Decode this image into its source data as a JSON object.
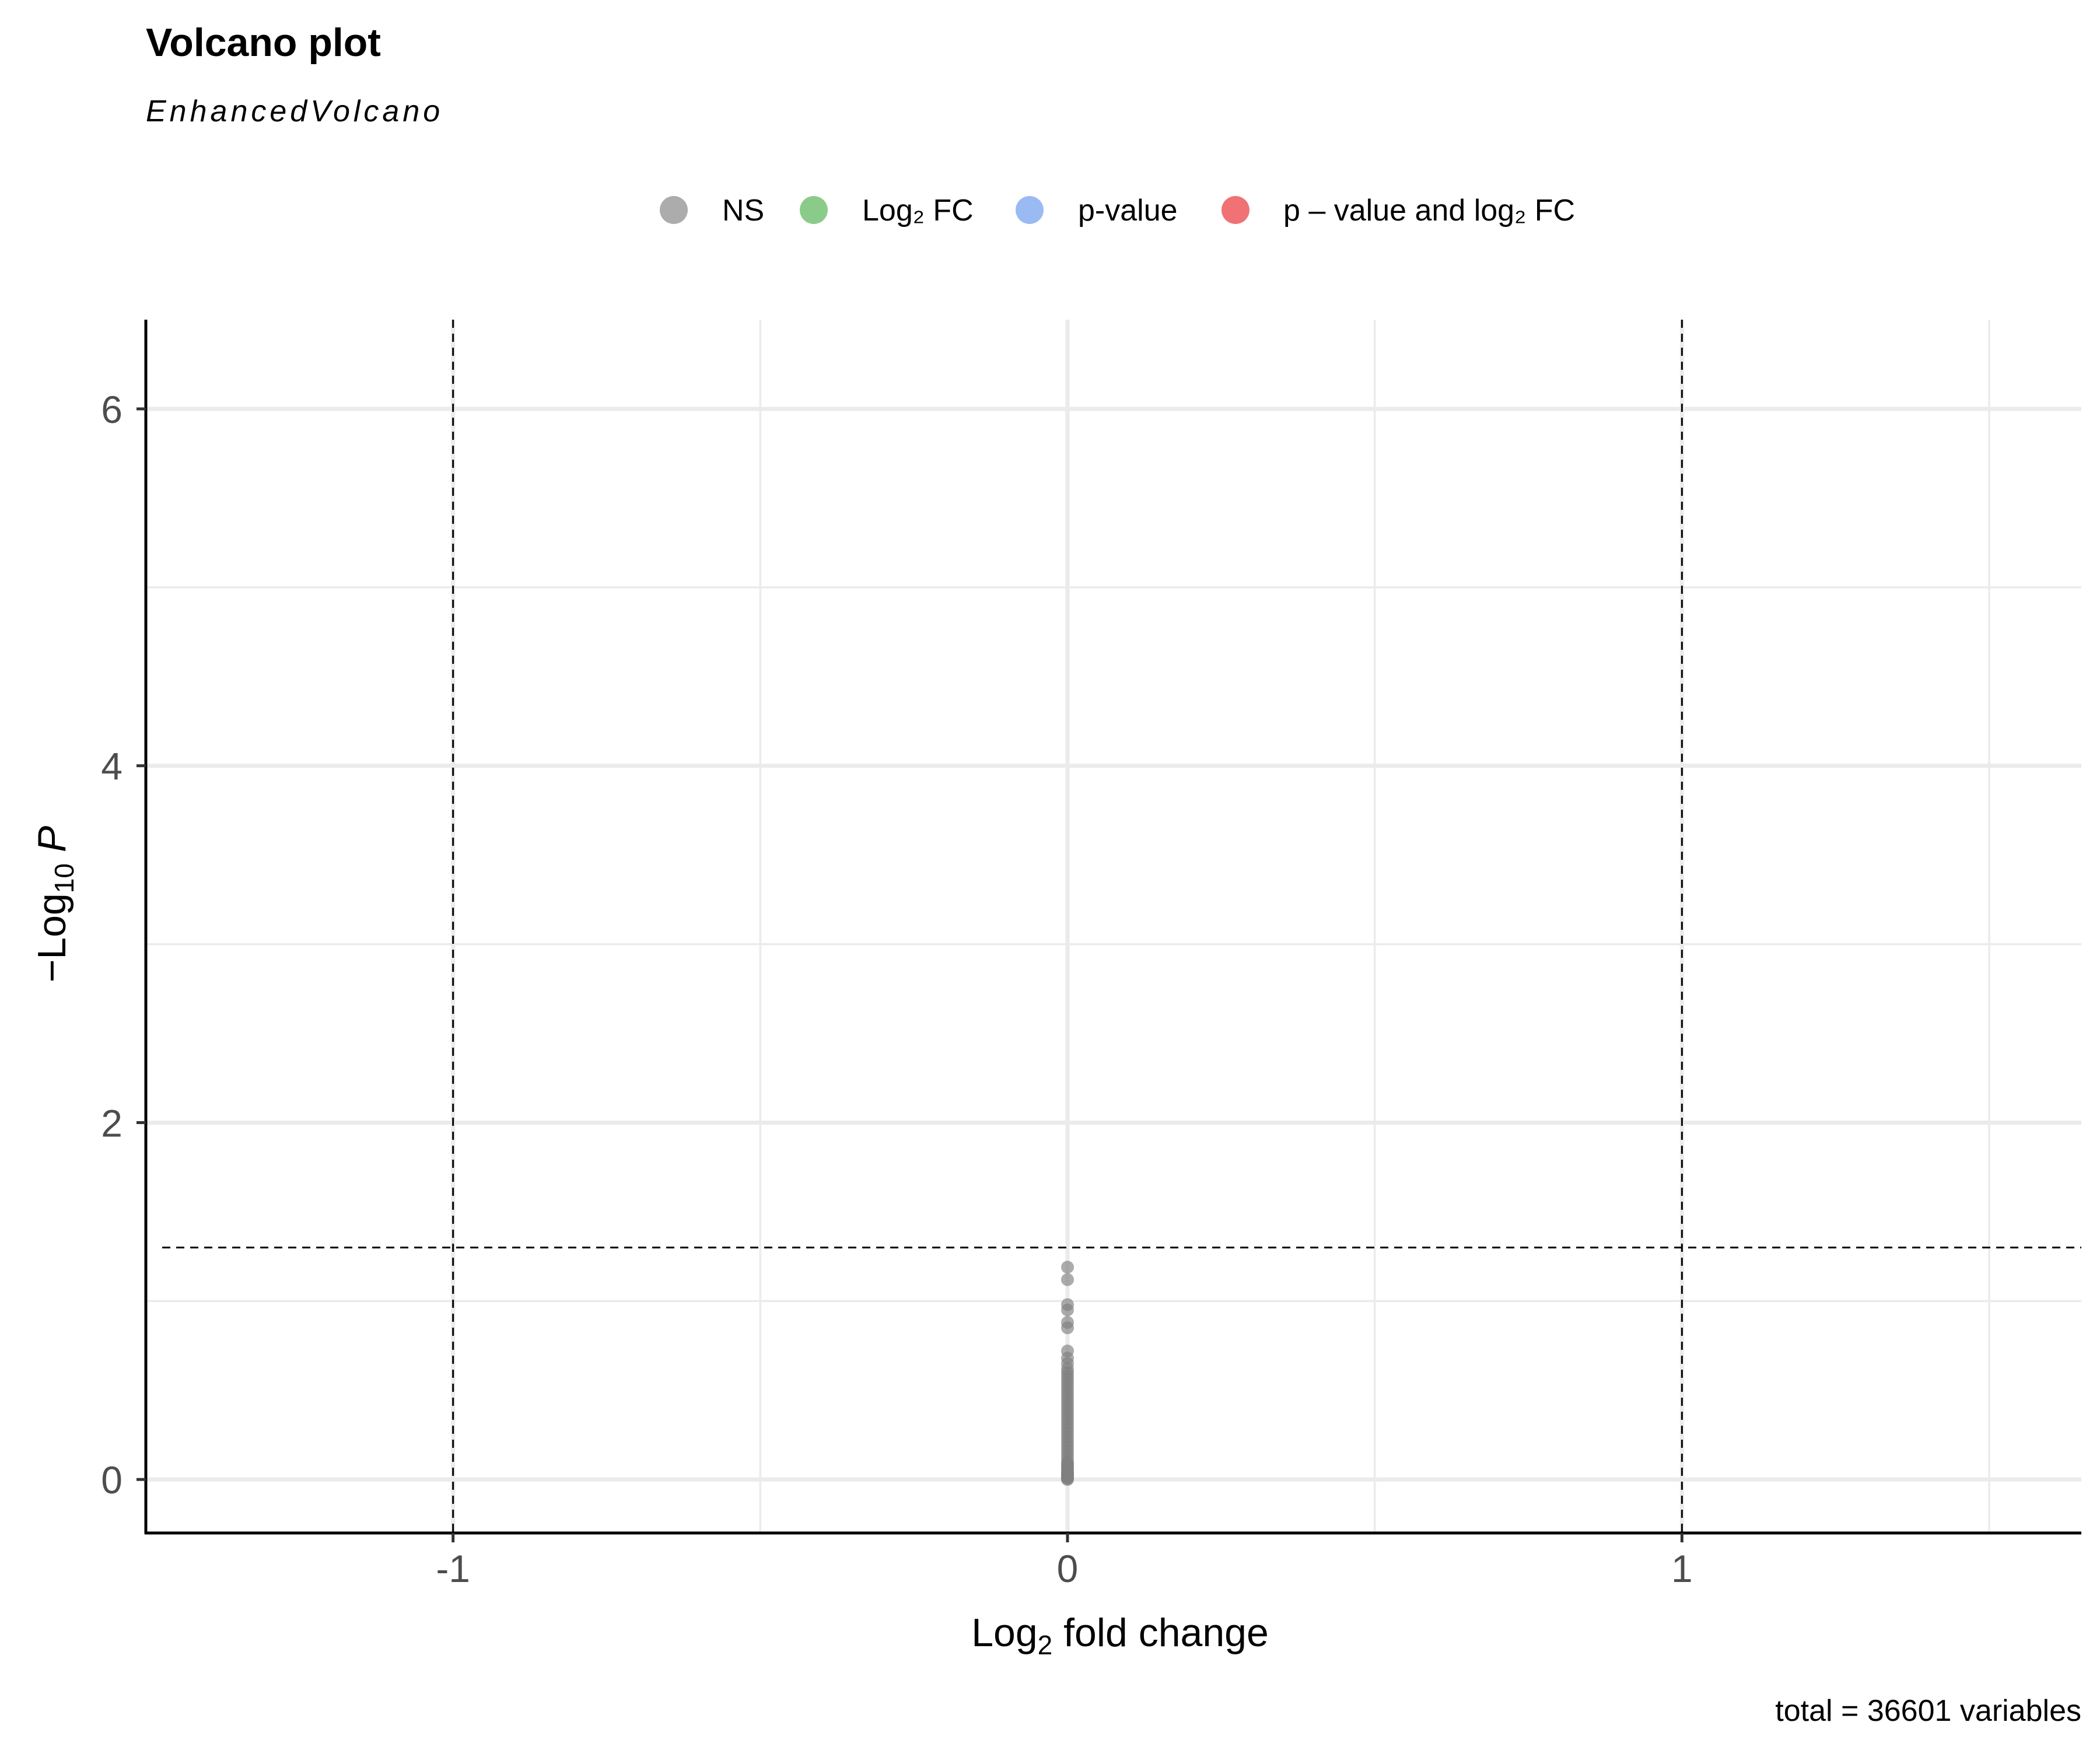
{
  "chart_data": {
    "type": "scatter",
    "title": "Volcano plot",
    "subtitle": "EnhancedVolcano",
    "xlabel": {
      "main": "Log",
      "sub": "2",
      "rest": " fold change"
    },
    "ylabel": {
      "prefix": "−Log",
      "sub": "10",
      "italic": " P"
    },
    "caption": "total = 36601 variables",
    "xlim": [
      -1.5,
      1.65
    ],
    "ylim": [
      -0.3,
      6.5
    ],
    "x_major_ticks": [
      -1,
      0,
      1
    ],
    "x_tick_labels": [
      "-1",
      "0",
      "1"
    ],
    "x_minor_ticks": [
      -1.5,
      -0.5,
      0.5,
      1.5
    ],
    "y_major_ticks": [
      0,
      2,
      4,
      6
    ],
    "y_tick_labels": [
      "0",
      "2",
      "4",
      "6"
    ],
    "y_minor_ticks": [
      1,
      3,
      5
    ],
    "grid": true,
    "legend_position": "top",
    "thresholds": {
      "fc": [
        -1,
        1
      ],
      "p_neglog10": 1.3
    },
    "legend": [
      {
        "key": "ns",
        "label": "NS",
        "color": "#808080"
      },
      {
        "key": "fc",
        "label": "Log₂ FC",
        "color": "#4daf4a"
      },
      {
        "key": "p",
        "label": "p-value",
        "color": "#6495ed"
      },
      {
        "key": "both",
        "label": "p – value and log₂ FC",
        "color": "#e8262a"
      }
    ],
    "series": [
      {
        "name": "NS",
        "color": "#808080",
        "x": [
          0,
          0,
          0,
          0,
          0,
          0,
          0,
          0,
          0,
          0,
          0,
          0,
          0,
          0,
          0,
          0,
          0,
          0,
          0,
          0,
          0,
          0,
          0,
          0,
          0,
          0,
          0,
          0,
          0,
          0,
          0,
          0,
          0,
          0,
          0,
          0,
          0,
          0,
          0,
          0,
          0,
          0,
          0,
          0,
          0,
          0,
          0,
          0,
          0,
          0
        ],
        "y": [
          1.19,
          1.12,
          0.98,
          0.95,
          0.88,
          0.85,
          0.72,
          0.68,
          0.65,
          0.62,
          0.6,
          0.58,
          0.56,
          0.54,
          0.52,
          0.5,
          0.48,
          0.46,
          0.44,
          0.42,
          0.4,
          0.38,
          0.36,
          0.34,
          0.32,
          0.3,
          0.28,
          0.26,
          0.24,
          0.22,
          0.2,
          0.18,
          0.16,
          0.14,
          0.12,
          0.1,
          0.09,
          0.08,
          0.07,
          0.06,
          0.05,
          0.04,
          0.035,
          0.03,
          0.025,
          0.02,
          0.015,
          0.01,
          0.005,
          0
        ]
      }
    ]
  }
}
